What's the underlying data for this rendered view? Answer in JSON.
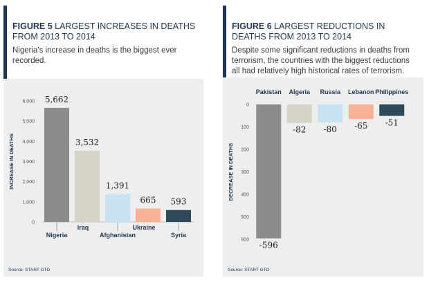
{
  "figure5": {
    "fig_number": "FIGURE 5",
    "title_rest": " LARGEST INCREASES IN DEATHS FROM 2013 TO 2014",
    "subtitle": "Nigeria's increase in deaths is the biggest ever recorded.",
    "source": "Source: START GTD"
  },
  "figure6": {
    "fig_number": "FIGURE 6",
    "title_rest": " LARGEST REDUCTIONS IN DEATHS FROM 2013 TO 2014",
    "subtitle": "Despite some significant reductions in deaths from terrorism, the countries with the biggest reductions all had relatively high historical rates of terrorism.",
    "source": "Source: START GTD"
  },
  "chart_data": [
    {
      "type": "bar",
      "title": "LARGEST INCREASES IN DEATHS FROM 2013 TO 2014",
      "ylabel": "INCREASE IN DEATHS",
      "categories": [
        "Nigeria",
        "Iraq",
        "Afghanistan",
        "Ukraine",
        "Syria"
      ],
      "values": [
        5662,
        3532,
        1391,
        665,
        593
      ],
      "value_labels": [
        "5,662",
        "3,532",
        "1,391",
        "665",
        "593"
      ],
      "ylim": [
        0,
        6000
      ],
      "yticks": [
        0,
        1000,
        2000,
        3000,
        4000,
        5000,
        6000
      ],
      "ytick_labels": [
        "0",
        "1,000",
        "2,000",
        "3,000",
        "4,000",
        "5,000",
        "6,000"
      ],
      "colors": [
        "#8c8c8c",
        "#d6d3c8",
        "#c8e3f4",
        "#f6b196",
        "#2e4a5a"
      ],
      "grid": false
    },
    {
      "type": "bar",
      "title": "LARGEST REDUCTIONS IN DEATHS FROM 2013 TO 2014",
      "ylabel": "DECREASE IN DEATHS",
      "categories": [
        "Pakistan",
        "Algeria",
        "Russia",
        "Lebanon",
        "Philippines"
      ],
      "values": [
        -596,
        -82,
        -80,
        -65,
        -51
      ],
      "value_labels": [
        "-596",
        "-82",
        "-80",
        "-65",
        "-51"
      ],
      "ylim": [
        -600,
        0
      ],
      "yticks": [
        0,
        -100,
        -200,
        -300,
        -400,
        -500,
        -600
      ],
      "ytick_labels": [
        "0",
        "100",
        "200",
        "300",
        "400",
        "500",
        "600"
      ],
      "colors": [
        "#8c8c8c",
        "#d6d3c8",
        "#c8e3f4",
        "#f6b196",
        "#2e4a5a"
      ],
      "grid": false
    }
  ]
}
